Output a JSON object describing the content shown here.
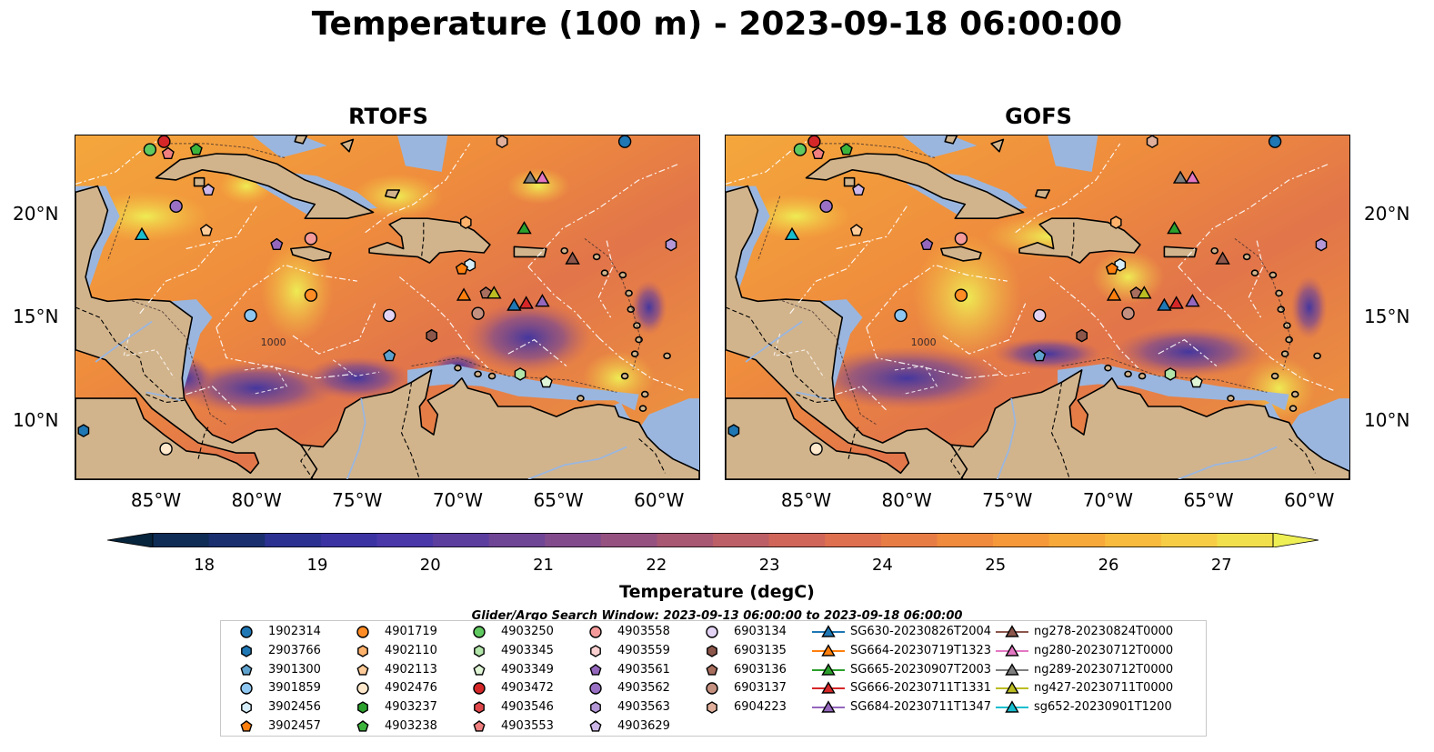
{
  "title": "Temperature (100 m) - 2023-09-18 06:00:00",
  "panels": [
    {
      "id": "rtofs",
      "title": "RTOFS"
    },
    {
      "id": "gofs",
      "title": "GOFS"
    }
  ],
  "axes": {
    "x_ticks": [
      "85°W",
      "80°W",
      "75°W",
      "70°W",
      "65°W",
      "60°W"
    ],
    "y_ticks": [
      "20°N",
      "15°N",
      "10°N"
    ],
    "lon_range": [
      -89,
      -58
    ],
    "lat_range": [
      7,
      24
    ]
  },
  "contour_label": "1000",
  "colorbar": {
    "label": "Temperature (degC)",
    "ticks": [
      "18",
      "19",
      "20",
      "21",
      "22",
      "23",
      "24",
      "25",
      "26",
      "27"
    ],
    "colors": [
      "#06243b",
      "#0e2c55",
      "#1a2f6e",
      "#2b3190",
      "#3c33a3",
      "#4a38a9",
      "#5c3e9f",
      "#6f4595",
      "#824b8c",
      "#955180",
      "#a85873",
      "#bc5f66",
      "#cf6659",
      "#de6f4f",
      "#e87c45",
      "#f08a3c",
      "#f5993a",
      "#f7a93a",
      "#f8bb3e",
      "#f6cd44",
      "#f2df4c",
      "#eeef55"
    ]
  },
  "search_window": "Glider/Argo Search Window: 2023-09-13 06:00:00 to 2023-09-18 06:00:00",
  "legend": [
    {
      "label": "1902314",
      "marker": "circle",
      "color": "#1f77b4"
    },
    {
      "label": "2903766",
      "marker": "hexagon",
      "color": "#1f77b4"
    },
    {
      "label": "3901300",
      "marker": "pentagon",
      "color": "#5fa2ce"
    },
    {
      "label": "3901859",
      "marker": "circle",
      "color": "#8ec7f1"
    },
    {
      "label": "3902456",
      "marker": "hexagon",
      "color": "#d6eefa"
    },
    {
      "label": "3902457",
      "marker": "pentagon",
      "color": "#ff7f0e"
    },
    {
      "label": "4901719",
      "marker": "circle",
      "color": "#ff8c24"
    },
    {
      "label": "4902110",
      "marker": "hexagon",
      "color": "#ffb26b"
    },
    {
      "label": "4902113",
      "marker": "pentagon",
      "color": "#ffcc99"
    },
    {
      "label": "4902476",
      "marker": "circle",
      "color": "#ffe8cc"
    },
    {
      "label": "4903237",
      "marker": "hexagon",
      "color": "#2ca02c"
    },
    {
      "label": "4903238",
      "marker": "pentagon",
      "color": "#3cb43c"
    },
    {
      "label": "4903250",
      "marker": "circle",
      "color": "#5fc95f"
    },
    {
      "label": "4903345",
      "marker": "hexagon",
      "color": "#b2e5a9"
    },
    {
      "label": "4903349",
      "marker": "pentagon",
      "color": "#dff5d6"
    },
    {
      "label": "4903472",
      "marker": "circle",
      "color": "#d62728"
    },
    {
      "label": "4903546",
      "marker": "hexagon",
      "color": "#e0474a"
    },
    {
      "label": "4903553",
      "marker": "pentagon",
      "color": "#f07f7f"
    },
    {
      "label": "4903558",
      "marker": "circle",
      "color": "#f59a9a"
    },
    {
      "label": "4903559",
      "marker": "hexagon",
      "color": "#fad0d0"
    },
    {
      "label": "4903561",
      "marker": "pentagon",
      "color": "#9467bd"
    },
    {
      "label": "4903562",
      "marker": "circle",
      "color": "#9a70c4"
    },
    {
      "label": "4903563",
      "marker": "hexagon",
      "color": "#b497d6"
    },
    {
      "label": "4903629",
      "marker": "pentagon",
      "color": "#cdb6e8"
    },
    {
      "label": "6903134",
      "marker": "circle",
      "color": "#e3d3f4"
    },
    {
      "label": "6903135",
      "marker": "hexagon",
      "color": "#8c564b"
    },
    {
      "label": "6903136",
      "marker": "pentagon",
      "color": "#a86e5e"
    },
    {
      "label": "6903137",
      "marker": "circle",
      "color": "#c49080"
    },
    {
      "label": "6904223",
      "marker": "hexagon",
      "color": "#e0b09c"
    },
    {
      "label": "SG630-20230826T2004",
      "marker": "triangle",
      "color": "#1f77b4"
    },
    {
      "label": "SG664-20230719T1323",
      "marker": "triangle",
      "color": "#ff7f0e"
    },
    {
      "label": "SG665-20230907T2003",
      "marker": "triangle",
      "color": "#2ca02c"
    },
    {
      "label": "SG666-20230711T1331",
      "marker": "triangle",
      "color": "#d62728"
    },
    {
      "label": "SG684-20230711T1347",
      "marker": "triangle",
      "color": "#9467bd"
    },
    {
      "label": "ng278-20230824T0000",
      "marker": "triangle",
      "color": "#8c564b"
    },
    {
      "label": "ng280-20230712T0000",
      "marker": "triangle",
      "color": "#e377c2"
    },
    {
      "label": "ng289-20230712T0000",
      "marker": "triangle",
      "color": "#7f7f7f"
    },
    {
      "label": "ng427-20230711T0000",
      "marker": "triangle",
      "color": "#bcbd22"
    },
    {
      "label": "sg652-20230901T1200",
      "marker": "triangle",
      "color": "#17becf"
    }
  ],
  "observations": [
    {
      "id": "1902314",
      "lon": -61.7,
      "lat": 23.7
    },
    {
      "id": "4903250",
      "lon": -85.3,
      "lat": 23.3
    },
    {
      "id": "4903472",
      "lon": -84.6,
      "lat": 23.7
    },
    {
      "id": "4903553",
      "lon": -84.4,
      "lat": 23.1
    },
    {
      "id": "4903238",
      "lon": -83.0,
      "lat": 23.3
    },
    {
      "id": "4903629",
      "lon": -82.4,
      "lat": 21.3
    },
    {
      "id": "4903562",
      "lon": -84.0,
      "lat": 20.5
    },
    {
      "id": "4902113",
      "lon": -82.5,
      "lat": 19.3
    },
    {
      "id": "sg652-20230901T1200",
      "lon": -85.7,
      "lat": 19.1
    },
    {
      "id": "4903561",
      "lon": -79.0,
      "lat": 18.6
    },
    {
      "id": "4903558",
      "lon": -77.3,
      "lat": 18.9
    },
    {
      "id": "4901719",
      "lon": -77.3,
      "lat": 16.1
    },
    {
      "id": "3901859",
      "lon": -80.3,
      "lat": 15.1
    },
    {
      "id": "6903134",
      "lon": -73.4,
      "lat": 15.1
    },
    {
      "id": "3901300",
      "lon": -73.4,
      "lat": 13.1
    },
    {
      "id": "6903135",
      "lon": -71.3,
      "lat": 14.1
    },
    {
      "id": "4902476",
      "lon": -84.5,
      "lat": 8.5
    },
    {
      "id": "2903766",
      "lon": -88.6,
      "lat": 9.4
    },
    {
      "id": "4902110",
      "lon": -69.6,
      "lat": 19.7
    },
    {
      "id": "3902456",
      "lon": -69.4,
      "lat": 17.6
    },
    {
      "id": "3902457",
      "lon": -69.8,
      "lat": 17.4
    },
    {
      "id": "SG664-20230719T1323",
      "lon": -69.7,
      "lat": 16.1
    },
    {
      "id": "6903136",
      "lon": -68.6,
      "lat": 16.2
    },
    {
      "id": "ng427-20230711T0000",
      "lon": -68.2,
      "lat": 16.2
    },
    {
      "id": "6903137",
      "lon": -69.0,
      "lat": 15.2
    },
    {
      "id": "SG630-20230826T2004",
      "lon": -67.2,
      "lat": 15.6
    },
    {
      "id": "SG666-20230711T1331",
      "lon": -66.6,
      "lat": 15.7
    },
    {
      "id": "SG684-20230711T1347",
      "lon": -65.8,
      "lat": 15.8
    },
    {
      "id": "SG665-20230907T2003",
      "lon": -66.7,
      "lat": 19.4
    },
    {
      "id": "ng289-20230712T0000",
      "lon": -66.4,
      "lat": 21.9
    },
    {
      "id": "ng280-20230712T0000",
      "lon": -65.8,
      "lat": 21.9
    },
    {
      "id": "ng278-20230824T0000",
      "lon": -64.3,
      "lat": 17.9
    },
    {
      "id": "6904223",
      "lon": -67.8,
      "lat": 23.7
    },
    {
      "id": "4903563",
      "lon": -59.4,
      "lat": 18.6
    },
    {
      "id": "4903349",
      "lon": -65.6,
      "lat": 11.8
    },
    {
      "id": "4903345",
      "lon": -66.9,
      "lat": 12.2
    }
  ]
}
